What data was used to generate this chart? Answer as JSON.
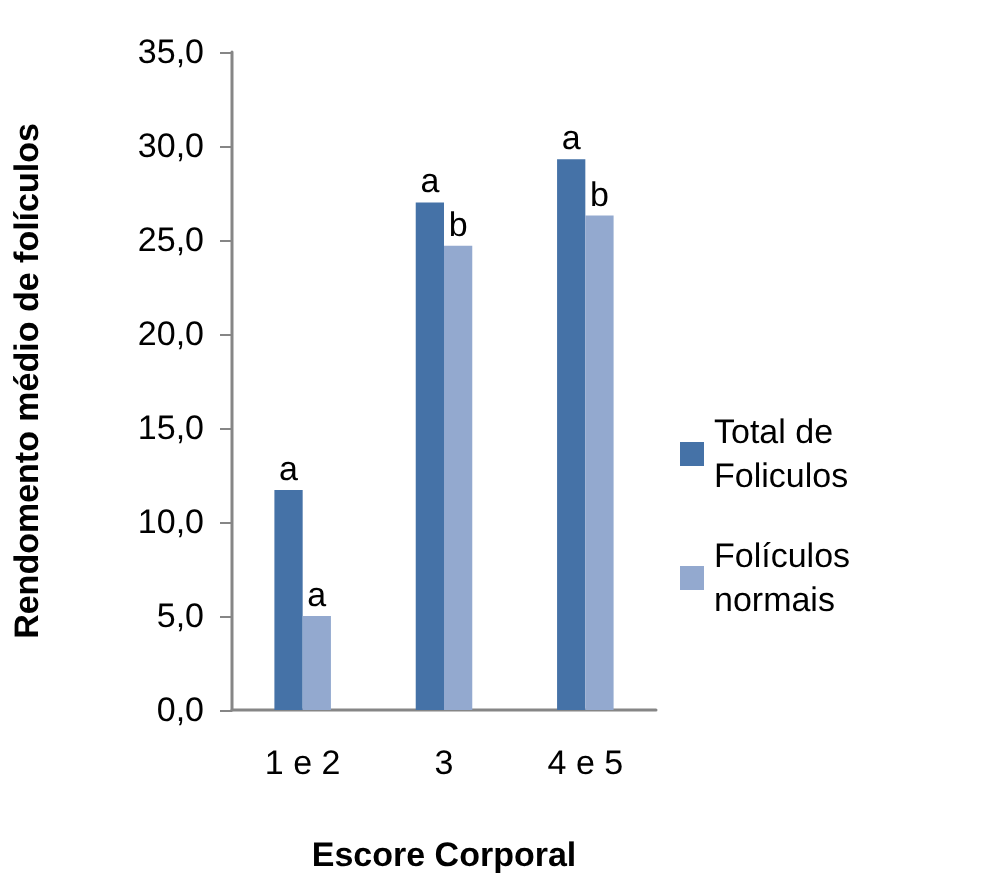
{
  "chart_data": {
    "type": "bar",
    "xlabel": "Escore Corporal",
    "ylabel": "Rendomento médio de folículos",
    "categories": [
      "1 e 2",
      "3",
      "4 e 5"
    ],
    "series": [
      {
        "name": "Total de Foliculos",
        "color": "#4572a7",
        "values": [
          11.7,
          27.0,
          29.3
        ],
        "value_labels": [
          "a",
          "a",
          "a"
        ]
      },
      {
        "name": "Folículos normais",
        "color": "#93a9cf",
        "values": [
          5.0,
          24.7,
          26.3
        ],
        "value_labels": [
          "a",
          "b",
          "b"
        ]
      }
    ],
    "ylim": [
      0,
      35
    ],
    "yticks": [
      {
        "value": 0,
        "label": "0,0"
      },
      {
        "value": 5,
        "label": "5,0"
      },
      {
        "value": 10,
        "label": "10,0"
      },
      {
        "value": 15,
        "label": "15,0"
      },
      {
        "value": 20,
        "label": "20,0"
      },
      {
        "value": 25,
        "label": "25,0"
      },
      {
        "value": 30,
        "label": "30,0"
      },
      {
        "value": 35,
        "label": "35,0"
      }
    ],
    "legend": "right"
  }
}
